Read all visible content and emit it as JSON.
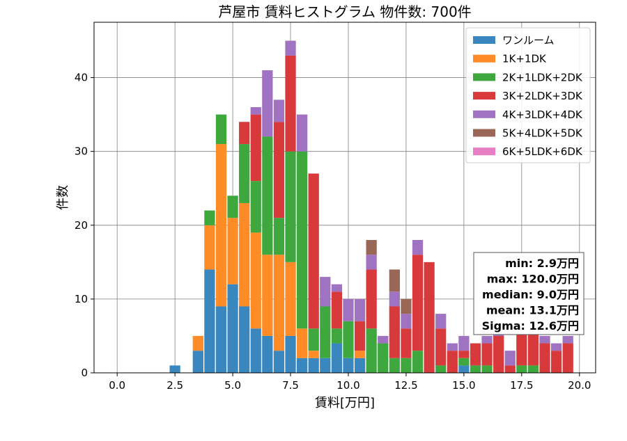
{
  "chart_data": {
    "type": "bar",
    "stacked": true,
    "title": "芦屋市 賃料ヒストグラム  物件数: 700件",
    "xlabel": "賃料[万円]",
    "ylabel": "件数",
    "xlim": [
      -1.0,
      20.7
    ],
    "ylim": [
      0,
      47.5
    ],
    "xticks": [
      0.0,
      2.5,
      5.0,
      7.5,
      10.0,
      12.5,
      15.0,
      17.5,
      20.0
    ],
    "xtick_labels": [
      "0.0",
      "2.5",
      "5.0",
      "7.5",
      "10.0",
      "12.5",
      "15.0",
      "17.5",
      "20.0"
    ],
    "yticks": [
      0,
      10,
      20,
      30,
      40
    ],
    "ytick_labels": [
      "0",
      "10",
      "20",
      "30",
      "40"
    ],
    "grid": true,
    "legend_position": "top-right",
    "bin_width": 0.5,
    "bin_centers": [
      2.5,
      3.5,
      4.0,
      4.5,
      5.0,
      5.5,
      6.0,
      6.5,
      7.0,
      7.5,
      8.0,
      8.5,
      9.0,
      9.5,
      10.0,
      10.5,
      11.0,
      11.5,
      12.0,
      12.5,
      13.0,
      13.5,
      14.0,
      14.5,
      15.0,
      15.5,
      16.0,
      16.5,
      17.0,
      17.5,
      18.0,
      18.5,
      19.0,
      19.5
    ],
    "series": [
      {
        "name": "ワンルーム",
        "color": "#3a87c0",
        "values": [
          1,
          3,
          14,
          9,
          12,
          9,
          6,
          5,
          3,
          5,
          2,
          2,
          2,
          4,
          2,
          2,
          0,
          0,
          0,
          0,
          0,
          0,
          0,
          0,
          1,
          0,
          0,
          0,
          0,
          0,
          0,
          0,
          0,
          0
        ]
      },
      {
        "name": "1K+1DK",
        "color": "#ff8c26",
        "values": [
          0,
          2,
          6,
          22,
          9,
          14,
          13,
          11,
          13,
          10,
          4,
          1,
          0,
          0,
          0,
          1,
          0,
          0,
          0,
          0,
          0,
          0,
          0,
          0,
          0,
          0,
          0,
          0,
          0,
          0,
          0,
          0,
          0,
          0
        ]
      },
      {
        "name": "2K+1LDK+2DK",
        "color": "#3ea83e",
        "values": [
          0,
          0,
          2,
          4,
          3,
          8,
          7,
          16,
          5,
          15,
          24,
          3,
          7,
          2,
          5,
          0,
          6,
          4,
          2,
          2,
          3,
          0,
          1,
          0,
          1,
          1,
          1,
          0,
          0,
          1,
          1,
          0,
          0,
          0
        ]
      },
      {
        "name": "3K+2LDK+3DK",
        "color": "#d8393a",
        "values": [
          0,
          0,
          0,
          0,
          0,
          3,
          9,
          0,
          13,
          13,
          0,
          21,
          0,
          5,
          0,
          4,
          8,
          0,
          7,
          4,
          13,
          15,
          5,
          3,
          1,
          3,
          3,
          5,
          1,
          5,
          5,
          4,
          3,
          4
        ]
      },
      {
        "name": "4K+3LDK+4DK",
        "color": "#9f73c1",
        "values": [
          0,
          0,
          0,
          0,
          0,
          0,
          1,
          9,
          3,
          2,
          5,
          0,
          4,
          1,
          3,
          3,
          2,
          1,
          2,
          2,
          2,
          0,
          2,
          1,
          2,
          0,
          1,
          1,
          2,
          1,
          1,
          1,
          1,
          1
        ]
      },
      {
        "name": "5K+4LDK+5DK",
        "color": "#9a6757",
        "values": [
          0,
          0,
          0,
          0,
          0,
          0,
          0,
          0,
          0,
          0,
          0,
          0,
          0,
          0,
          0,
          0,
          2,
          0,
          3,
          2,
          0,
          0,
          0,
          0,
          0,
          0,
          0,
          0,
          0,
          0,
          0,
          0,
          0,
          0
        ]
      },
      {
        "name": "6K+5LDK+6DK",
        "color": "#e87fc4",
        "values": [
          0,
          0,
          0,
          0,
          0,
          0,
          0,
          0,
          0,
          0,
          0,
          0,
          0,
          0,
          0,
          0,
          0,
          0,
          0,
          0,
          0,
          0,
          0,
          0,
          0,
          0,
          0,
          0,
          0,
          0,
          0,
          0,
          0,
          0
        ]
      }
    ],
    "stats_box": {
      "lines": [
        "min: 2.9万円",
        "max: 120.0万円",
        "median: 9.0万円",
        "mean: 13.1万円",
        "Sigma: 12.6万円"
      ]
    }
  }
}
